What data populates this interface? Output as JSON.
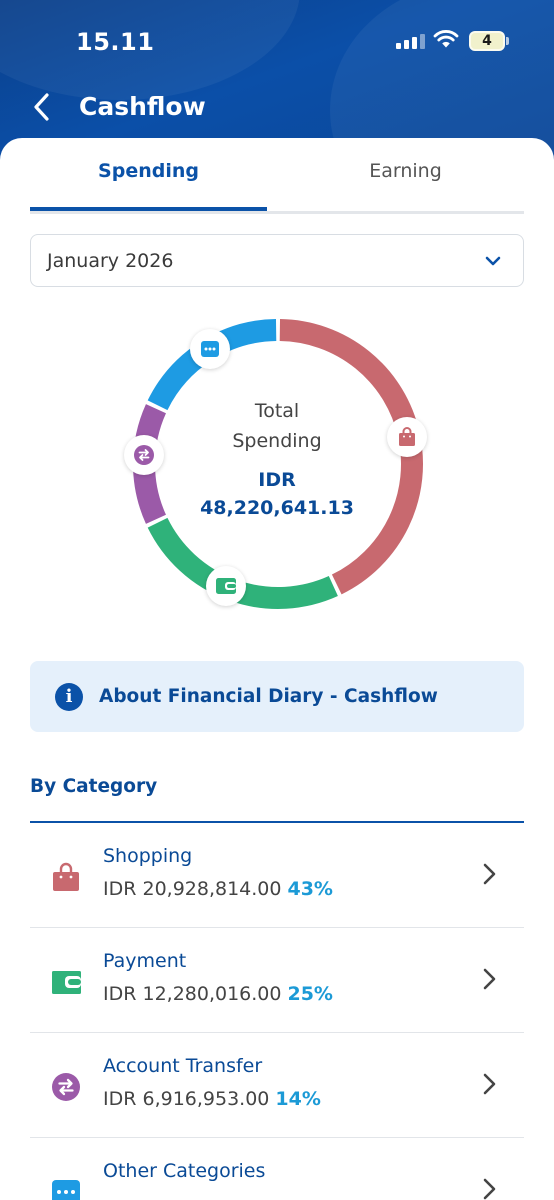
{
  "status_bar": {
    "time": "15.11",
    "battery": "4"
  },
  "header": {
    "title": "Cashflow"
  },
  "tabs": [
    {
      "label": "Spending",
      "active": true
    },
    {
      "label": "Earning",
      "active": false
    }
  ],
  "period_select": {
    "value": "January 2026"
  },
  "summary": {
    "line1": "Total",
    "line2": "Spending",
    "currency": "IDR",
    "amount": "48,220,641.13"
  },
  "donut": {
    "segments": [
      {
        "category": "Shopping",
        "percent": 43,
        "color": "#c8696f",
        "icon": "shopping-bag-icon"
      },
      {
        "category": "Payment",
        "percent": 25,
        "color": "#2fb27a",
        "icon": "wallet-icon"
      },
      {
        "category": "Account Transfer",
        "percent": 14,
        "color": "#9b5aa8",
        "icon": "transfer-icon"
      },
      {
        "category": "Other Categories",
        "percent": 18,
        "color": "#1e9be3",
        "icon": "more-dots-icon"
      }
    ]
  },
  "info_banner": {
    "text": "About Financial Diary - Cashflow"
  },
  "by_category": {
    "title": "By Category",
    "items": [
      {
        "name": "Shopping",
        "amount": "IDR 20,928,814.00",
        "percent": "43%",
        "icon": "shopping-bag-icon",
        "color": "#c8696f"
      },
      {
        "name": "Payment",
        "amount": "IDR 12,280,016.00",
        "percent": "25%",
        "icon": "wallet-icon",
        "color": "#2fb27a"
      },
      {
        "name": "Account Transfer",
        "amount": "IDR 6,916,953.00",
        "percent": "14%",
        "icon": "transfer-icon",
        "color": "#9b5aa8"
      },
      {
        "name": "Other Categories",
        "amount": "",
        "percent": "",
        "icon": "more-dots-icon",
        "color": "#1e9be3"
      }
    ]
  },
  "colors": {
    "brand_blue": "#0b52a8",
    "percent_blue": "#1c9ad6"
  }
}
